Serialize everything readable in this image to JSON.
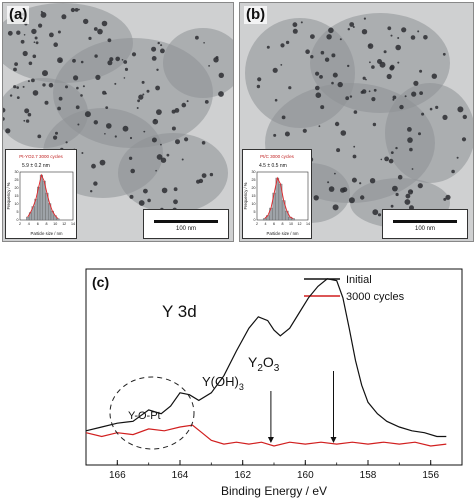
{
  "panels": {
    "a": {
      "label": "(a)",
      "scale_bar": "100 nm",
      "inset": {
        "sample": "Pt-YO2.7 3000 cycles",
        "size": "5.9 ± 0.2 nm",
        "xlabel": "Particle size / nm",
        "ylabel": "Frequency / %",
        "xticks": [
          "2",
          "4",
          "6",
          "8",
          "10",
          "12",
          "14"
        ],
        "yticks": [
          "0",
          "5",
          "10",
          "15",
          "20",
          "25",
          "30"
        ],
        "bars": [
          2,
          5,
          9,
          14,
          22,
          30,
          26,
          18,
          11,
          6,
          3,
          1
        ],
        "fit_color": "#e0262b"
      }
    },
    "b": {
      "label": "(b)",
      "scale_bar": "100 nm",
      "inset": {
        "sample": "Pt/C 3000 cycles",
        "size": "4.5 ± 0.5 nm",
        "xlabel": "Particle size / nm",
        "ylabel": "Frequency / %",
        "xticks": [
          "2",
          "4",
          "6",
          "8",
          "10",
          "12",
          "14"
        ],
        "yticks": [
          "0",
          "5",
          "10",
          "15",
          "20",
          "25",
          "30"
        ],
        "bars": [
          1,
          3,
          8,
          18,
          28,
          24,
          13,
          6,
          2,
          1
        ],
        "fit_color": "#e0262b"
      }
    },
    "c": {
      "label": "(c)",
      "title": "Y 3d",
      "xlabel": "Binding Energy / eV",
      "xticks": [
        "166",
        "164",
        "162",
        "160",
        "158",
        "156"
      ],
      "annotations": {
        "y2o3_base": "Y",
        "y2o3_sub1": "2",
        "y2o3_mid": "O",
        "y2o3_sub2": "3",
        "yoh_base": "Y(OH)",
        "yoh_sub": "3",
        "yopt": "Y-O-Pt"
      },
      "colors": {
        "initial": "#111111",
        "cycled": "#d11f1f"
      }
    }
  },
  "chart_data": {
    "type": "line",
    "title": "Y 3d",
    "xlabel": "Binding Energy / eV",
    "ylabel": "",
    "xlim": [
      167,
      155
    ],
    "ylim": [
      0,
      1
    ],
    "x_reversed": true,
    "series": [
      {
        "name": "Initial",
        "color": "#111111",
        "x": [
          167.0,
          166.5,
          166.0,
          165.5,
          165.0,
          164.6,
          164.3,
          164.0,
          163.7,
          163.4,
          163.0,
          162.6,
          162.2,
          161.8,
          161.5,
          161.2,
          161.0,
          160.8,
          160.5,
          160.2,
          159.9,
          159.6,
          159.3,
          159.0,
          158.8,
          158.6,
          158.4,
          158.2,
          158.0,
          157.7,
          157.4,
          157.0,
          156.6,
          156.2,
          155.8,
          155.5
        ],
        "y": [
          0.18,
          0.2,
          0.22,
          0.23,
          0.29,
          0.27,
          0.31,
          0.38,
          0.37,
          0.34,
          0.38,
          0.47,
          0.6,
          0.72,
          0.78,
          0.76,
          0.71,
          0.68,
          0.72,
          0.8,
          0.88,
          0.94,
          0.98,
          0.97,
          0.88,
          0.72,
          0.55,
          0.42,
          0.33,
          0.27,
          0.23,
          0.2,
          0.18,
          0.17,
          0.15,
          0.15
        ]
      },
      {
        "name": "3000 cycles",
        "color": "#d11f1f",
        "x": [
          167.0,
          166.5,
          166.0,
          165.5,
          165.0,
          164.5,
          164.0,
          163.6,
          163.3,
          163.0,
          162.6,
          162.2,
          161.8,
          161.4,
          161.0,
          160.5,
          160.0,
          159.5,
          159.0,
          158.5,
          158.0,
          157.5,
          157.0,
          156.5,
          156.0,
          155.5
        ],
        "y": [
          0.17,
          0.15,
          0.17,
          0.16,
          0.19,
          0.18,
          0.2,
          0.21,
          0.17,
          0.13,
          0.11,
          0.12,
          0.11,
          0.12,
          0.1,
          0.12,
          0.11,
          0.12,
          0.11,
          0.12,
          0.11,
          0.12,
          0.11,
          0.12,
          0.1,
          0.11
        ]
      }
    ],
    "annotations": [
      {
        "text": "Y2O3",
        "x": 159.1,
        "y_target": 0.1
      },
      {
        "text": "Y(OH)3",
        "x": 161.1,
        "y_target": 0.1
      },
      {
        "text": "Y-O-Pt",
        "x": 164.0
      }
    ],
    "legend_position": "top-right"
  }
}
